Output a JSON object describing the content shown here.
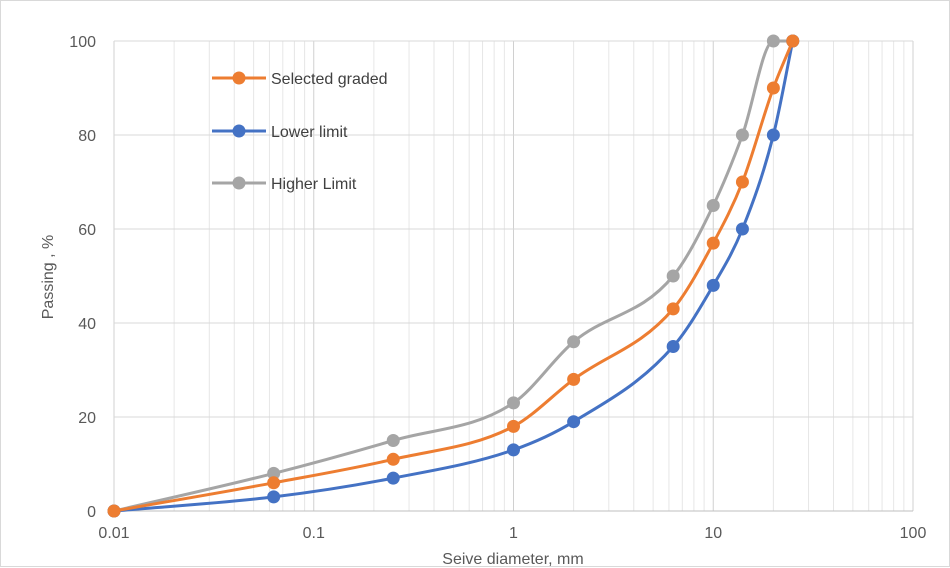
{
  "chart_data": {
    "type": "line",
    "x_scale": "log",
    "x_domain": [
      0.01,
      100
    ],
    "ylim": [
      0,
      100
    ],
    "x_ticks": [
      0.01,
      0.1,
      1,
      10,
      100
    ],
    "x_tick_labels": [
      "0.01",
      "0.1",
      "1",
      "10",
      "100"
    ],
    "y_ticks": [
      0,
      20,
      40,
      60,
      80,
      100
    ],
    "y_tick_labels": [
      "0",
      "20",
      "40",
      "60",
      "80",
      "100"
    ],
    "xlabel": "Seive diameter, mm",
    "ylabel": "Passing , %",
    "grid": true,
    "minor_grid_x": true,
    "legend_position": "top-left",
    "series": [
      {
        "name": "Selected graded",
        "color": "#ed7d31",
        "points": [
          [
            0.01,
            0
          ],
          [
            0.063,
            6
          ],
          [
            0.25,
            11
          ],
          [
            1,
            18
          ],
          [
            2,
            28
          ],
          [
            6.3,
            43
          ],
          [
            10,
            57
          ],
          [
            14,
            70
          ],
          [
            20,
            90
          ],
          [
            25,
            100
          ]
        ]
      },
      {
        "name": "Lower limit",
        "color": "#4472c4",
        "points": [
          [
            0.01,
            0
          ],
          [
            0.063,
            3
          ],
          [
            0.25,
            7
          ],
          [
            1,
            13
          ],
          [
            2,
            19
          ],
          [
            6.3,
            35
          ],
          [
            10,
            48
          ],
          [
            14,
            60
          ],
          [
            20,
            80
          ],
          [
            25,
            100
          ]
        ]
      },
      {
        "name": "Higher Limit",
        "color": "#a5a5a5",
        "points": [
          [
            0.01,
            0
          ],
          [
            0.063,
            8
          ],
          [
            0.25,
            15
          ],
          [
            1,
            23
          ],
          [
            2,
            36
          ],
          [
            6.3,
            50
          ],
          [
            10,
            65
          ],
          [
            14,
            80
          ],
          [
            20,
            100
          ],
          [
            25,
            100
          ]
        ]
      }
    ]
  }
}
